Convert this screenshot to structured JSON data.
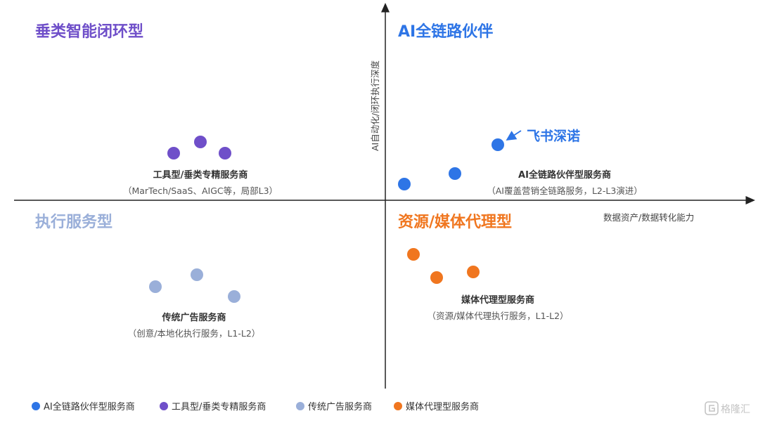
{
  "colors": {
    "ai_chain": "#2e75e6",
    "tool": "#6f4fc9",
    "traditional": "#9aafd9",
    "media": "#f0761f",
    "axis": "#222222",
    "title_purple": "#6f4fc9",
    "title_blue": "#2e75e6",
    "title_lightblue": "#9aafd9",
    "title_orange": "#f0761f"
  },
  "axes": {
    "y_label": "AI自动化/闭环执行深度",
    "x_label": "数据资产/数据转化能力"
  },
  "quadrants": {
    "top_left": "垂类智能闭环型",
    "top_right": "AI全链路伙伴",
    "bottom_left": "执行服务型",
    "bottom_right": "资源/媒体代理型"
  },
  "groups": [
    {
      "key": "tool",
      "name": "工具型/垂类专精服务商",
      "desc": "（MarTech/SaaS、AIGC等，局部L3）"
    },
    {
      "key": "ai_chain",
      "name": "AI全链路伙伴型服务商",
      "desc": "（AI覆盖营销全链路服务，L2-L3演进）"
    },
    {
      "key": "traditional",
      "name": "传统广告服务商",
      "desc": "（创意/本地化执行服务，L1-L2）"
    },
    {
      "key": "media",
      "name": "媒体代理型服务商",
      "desc": "（资源/媒体代理执行服务，L1-L2）"
    }
  ],
  "callout": {
    "label": "飞书深诺"
  },
  "legend": [
    {
      "key": "ai_chain",
      "label": "AI全链路伙伴型服务商"
    },
    {
      "key": "tool",
      "label": "工具型/垂类专精服务商"
    },
    {
      "key": "traditional",
      "label": "传统广告服务商"
    },
    {
      "key": "media",
      "label": "媒体代理型服务商"
    }
  ],
  "icon": "watermark-logo-icon",
  "watermark": {
    "text": "格隆汇"
  }
}
